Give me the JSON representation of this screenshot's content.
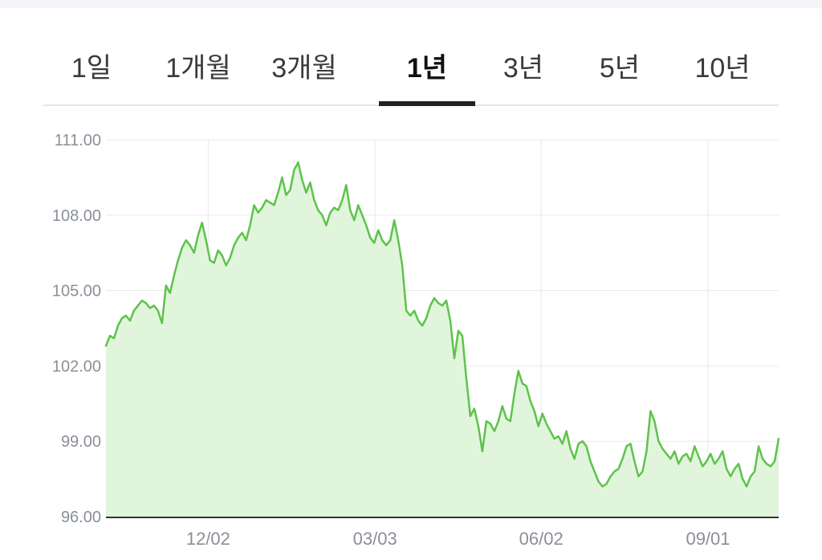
{
  "tabs": [
    {
      "label": "1일"
    },
    {
      "label": "1개월"
    },
    {
      "label": "3개월"
    },
    {
      "label": "1년",
      "active": true
    },
    {
      "label": "3년"
    },
    {
      "label": "5년"
    },
    {
      "label": "10년"
    }
  ],
  "chart_data": {
    "type": "area",
    "title": "",
    "xlabel": "",
    "ylabel": "",
    "ylim": [
      96,
      111
    ],
    "yticks": [
      "111.00",
      "108.00",
      "105.00",
      "102.00",
      "99.00",
      "96.00"
    ],
    "x_tick_labels": [
      "12/02",
      "03/03",
      "06/02",
      "09/01"
    ],
    "x_tick_fractions": [
      0.152,
      0.4,
      0.647,
      0.895
    ],
    "grid": true,
    "line_color": "#5cc44a",
    "fill_color": "#e1f5dc",
    "series": [
      {
        "values": [
          102.8,
          103.2,
          103.1,
          103.6,
          103.9,
          104.0,
          103.8,
          104.2,
          104.4,
          104.6,
          104.5,
          104.3,
          104.4,
          104.2,
          103.7,
          105.2,
          104.9,
          105.6,
          106.2,
          106.7,
          107.0,
          106.8,
          106.5,
          107.2,
          107.7,
          107.0,
          106.2,
          106.1,
          106.6,
          106.4,
          106.0,
          106.3,
          106.8,
          107.1,
          107.3,
          107.0,
          107.6,
          108.4,
          108.1,
          108.3,
          108.6,
          108.5,
          108.4,
          108.9,
          109.5,
          108.8,
          109.0,
          109.8,
          110.1,
          109.4,
          108.9,
          109.3,
          108.6,
          108.2,
          108.0,
          107.6,
          108.1,
          108.3,
          108.2,
          108.6,
          109.2,
          108.2,
          107.8,
          108.4,
          108.0,
          107.6,
          107.1,
          106.9,
          107.4,
          107.0,
          106.8,
          107.0,
          107.8,
          107.0,
          106.0,
          104.2,
          104.0,
          104.2,
          103.8,
          103.6,
          103.9,
          104.4,
          104.7,
          104.5,
          104.4,
          104.6,
          103.8,
          102.3,
          103.4,
          103.2,
          101.5,
          100.0,
          100.3,
          99.6,
          98.6,
          99.8,
          99.7,
          99.4,
          99.8,
          100.4,
          99.9,
          99.8,
          100.9,
          101.8,
          101.3,
          101.2,
          100.6,
          100.2,
          99.6,
          100.1,
          99.7,
          99.4,
          99.1,
          99.2,
          98.9,
          99.4,
          98.7,
          98.3,
          98.9,
          99.0,
          98.8,
          98.2,
          97.8,
          97.4,
          97.2,
          97.3,
          97.6,
          97.8,
          97.9,
          98.3,
          98.8,
          98.9,
          98.2,
          97.6,
          97.8,
          98.6,
          100.2,
          99.8,
          99.0,
          98.7,
          98.5,
          98.3,
          98.6,
          98.1,
          98.4,
          98.5,
          98.2,
          98.8,
          98.4,
          98.0,
          98.2,
          98.5,
          98.1,
          98.3,
          98.6,
          97.9,
          97.6,
          97.9,
          98.1,
          97.5,
          97.2,
          97.6,
          97.8,
          98.8,
          98.3,
          98.1,
          98.0,
          98.2,
          99.1
        ]
      }
    ]
  }
}
